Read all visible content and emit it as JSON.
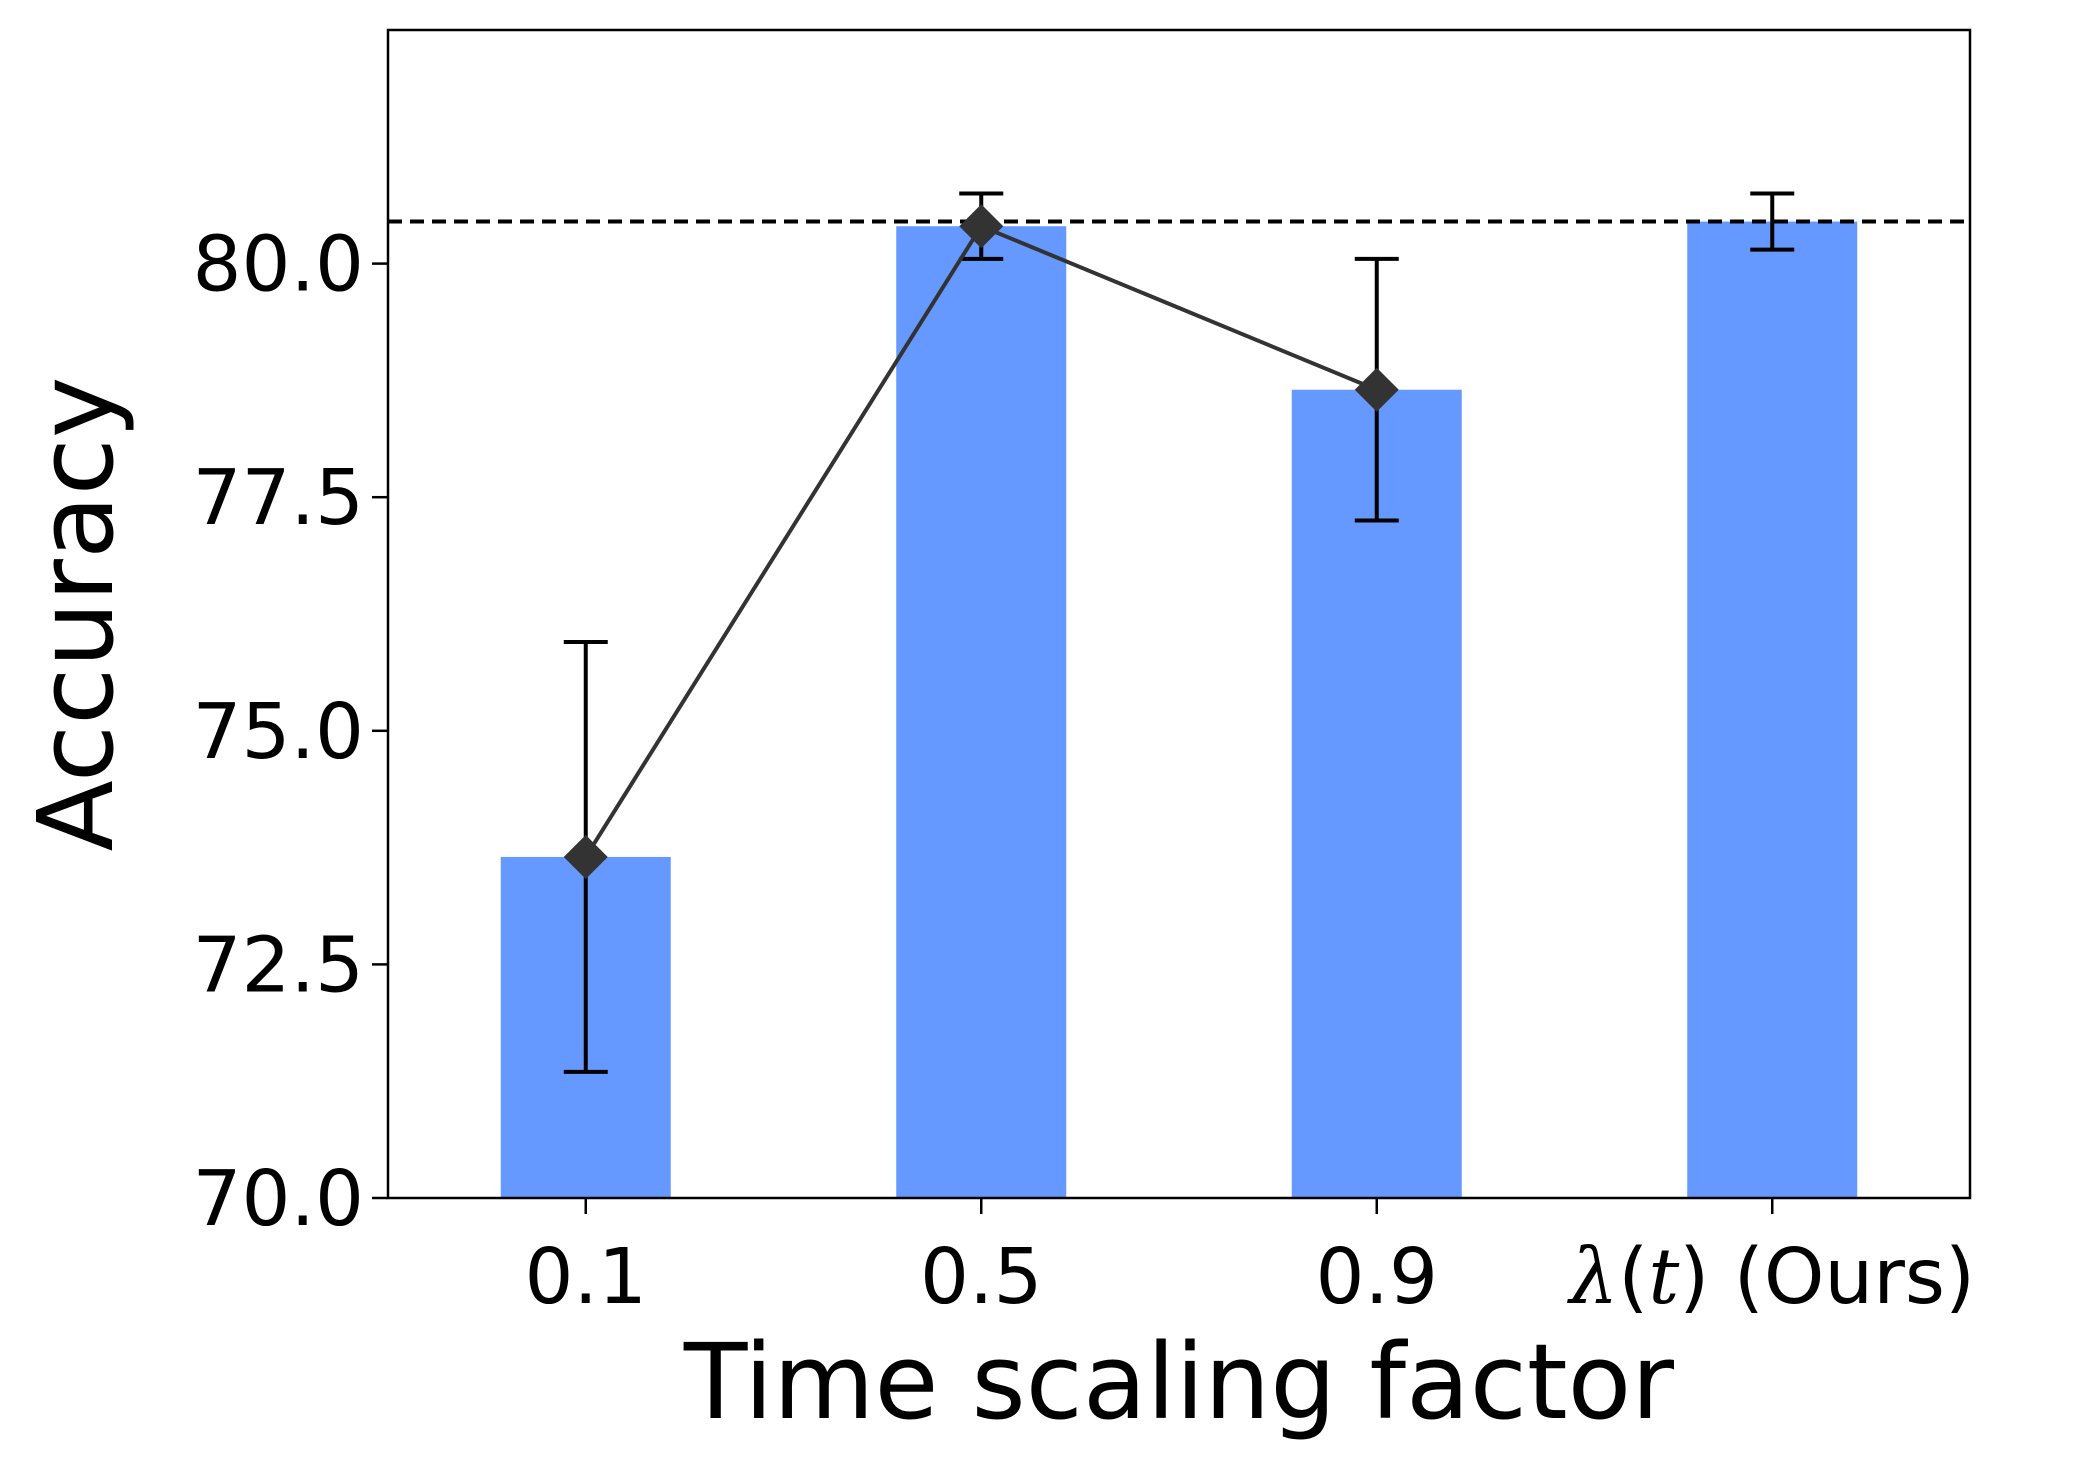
{
  "chart_data": {
    "type": "bar",
    "categories": [
      "0.1",
      "0.5",
      "0.9",
      "λ(t) (Ours)"
    ],
    "category_label_parts": [
      [
        {
          "text": "0.1",
          "italic": false
        }
      ],
      [
        {
          "text": "0.5",
          "italic": false
        }
      ],
      [
        {
          "text": "0.9",
          "italic": false
        }
      ],
      [
        {
          "text": "λ",
          "italic": true
        },
        {
          "text": "(",
          "italic": false
        },
        {
          "text": "t",
          "italic": true
        },
        {
          "text": ") (Ours)",
          "italic": false
        }
      ]
    ],
    "values": [
      73.65,
      80.4,
      78.65,
      80.45
    ],
    "error_bars": [
      {
        "low": 71.35,
        "high": 75.95
      },
      {
        "low": 80.05,
        "high": 80.75
      },
      {
        "low": 77.25,
        "high": 80.05
      },
      {
        "low": 80.15,
        "high": 80.75
      }
    ],
    "line_series": {
      "marker": "diamond",
      "points": [
        {
          "category": "0.1",
          "value": 73.65
        },
        {
          "category": "0.5",
          "value": 80.4
        },
        {
          "category": "0.9",
          "value": 78.65
        }
      ]
    },
    "reference_line": {
      "value": 80.45,
      "style": "dashed"
    },
    "xlabel": "Time scaling factor",
    "ylabel": "Accuracy",
    "ylim": [
      70.0,
      82.5
    ],
    "yticks": [
      70.0,
      72.5,
      75.0,
      77.5,
      80.0
    ],
    "ytick_labels": [
      "70.0",
      "72.5",
      "75.0",
      "77.5",
      "80.0"
    ],
    "grid": false,
    "colors": {
      "bar": "#6699ff",
      "line": "#333333",
      "marker": "#333333",
      "error_bar": "#000000",
      "reference_line": "#000000",
      "axes": "#000000"
    }
  }
}
